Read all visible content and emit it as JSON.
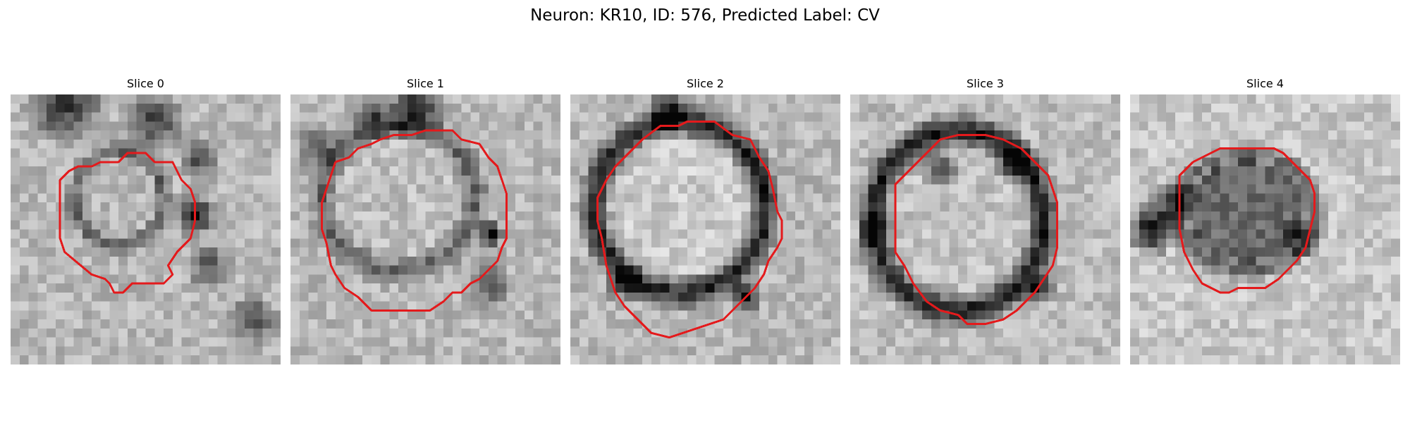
{
  "title": "Neuron: KR10, ID: 576, Predicted Label: CV",
  "contour_color": "#e41a1c",
  "colormap": "grayscale",
  "panels": [
    {
      "label": "Slice 0"
    },
    {
      "label": "Slice 1"
    },
    {
      "label": "Slice 2"
    },
    {
      "label": "Slice 3"
    },
    {
      "label": "Slice 4"
    }
  ]
}
